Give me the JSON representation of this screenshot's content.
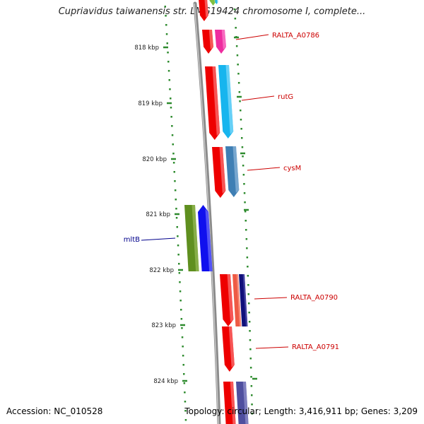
{
  "title": "Cupriavidus taiwanensis str. LMG19424 chromosome I, complete...",
  "footer": {
    "accession": "Accession: NC_010528",
    "summary": "Topology: circular; Length: 3,416,911 bp; Genes: 3,209"
  },
  "colors": {
    "backbone": "#8a8a8a",
    "tick": "#2e8b2e",
    "label_forward": "#cc0000",
    "label_reverse": "#00008b"
  },
  "ruler": {
    "unit": "kbp",
    "ticks": [
      {
        "value": 818,
        "label": "818 kbp"
      },
      {
        "value": 819,
        "label": "819 kbp"
      },
      {
        "value": 820,
        "label": "820 kbp"
      },
      {
        "value": 821,
        "label": "821 kbp"
      },
      {
        "value": 822,
        "label": "822 kbp"
      },
      {
        "value": 823,
        "label": "823 kbp"
      },
      {
        "value": 824,
        "label": "824 kbp"
      }
    ]
  },
  "genes": [
    {
      "name": "RALTA_A0786",
      "strand": "forward",
      "label_color": "#cc0000"
    },
    {
      "name": "rutG",
      "strand": "forward",
      "label_color": "#cc0000"
    },
    {
      "name": "cysM",
      "strand": "forward",
      "label_color": "#cc0000"
    },
    {
      "name": "mltB",
      "strand": "reverse",
      "label_color": "#00008b"
    },
    {
      "name": "RALTA_A0790",
      "strand": "forward",
      "label_color": "#cc0000"
    },
    {
      "name": "RALTA_A0791",
      "strand": "forward",
      "label_color": "#cc0000"
    }
  ]
}
